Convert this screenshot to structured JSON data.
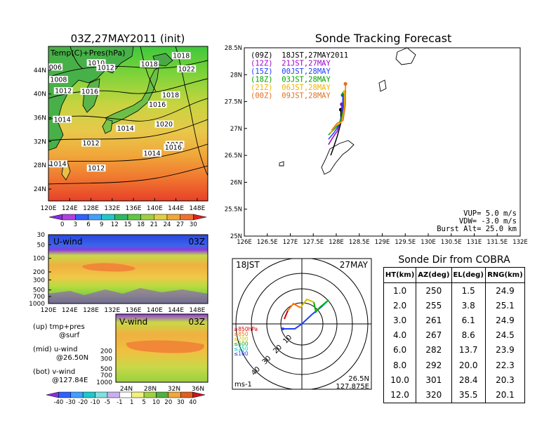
{
  "map_panel": {
    "title": "03Z,27MAY2011 (init)",
    "label": "Temp(C)+Pres(hPa)",
    "isobars": [
      {
        "text": "1010",
        "lon": 129.0,
        "lat": 45.0
      },
      {
        "text": "1012",
        "lon": 130.8,
        "lat": 44.2
      },
      {
        "text": "1018",
        "lon": 139.0,
        "lat": 44.8
      },
      {
        "text": "1018",
        "lon": 145.0,
        "lat": 46.2
      },
      {
        "text": "1022",
        "lon": 146.0,
        "lat": 44.0
      },
      {
        "text": "006",
        "lon": 121.3,
        "lat": 44.3
      },
      {
        "text": "1008",
        "lon": 121.9,
        "lat": 42.2
      },
      {
        "text": "1012",
        "lon": 122.8,
        "lat": 40.3
      },
      {
        "text": "1016",
        "lon": 127.8,
        "lat": 40.2
      },
      {
        "text": "1018",
        "lon": 143.0,
        "lat": 39.6
      },
      {
        "text": "1016",
        "lon": 140.5,
        "lat": 38.0
      },
      {
        "text": "1014",
        "lon": 122.6,
        "lat": 35.5
      },
      {
        "text": "1020",
        "lon": 141.8,
        "lat": 34.7
      },
      {
        "text": "1014",
        "lon": 134.5,
        "lat": 34.0
      },
      {
        "text": "1012",
        "lon": 128.0,
        "lat": 31.5
      },
      {
        "text": "1018",
        "lon": 143.8,
        "lat": 31.3
      },
      {
        "text": "1016",
        "lon": 143.5,
        "lat": 30.8
      },
      {
        "text": "1014",
        "lon": 139.5,
        "lat": 29.8
      },
      {
        "text": "1014",
        "lon": 121.8,
        "lat": 28.0
      },
      {
        "text": "1012",
        "lon": 129.0,
        "lat": 27.3
      }
    ],
    "lat_ticks": [
      "24N",
      "28N",
      "32N",
      "36N",
      "40N",
      "44N"
    ],
    "lon_ticks": [
      "120E",
      "124E",
      "128E",
      "132E",
      "136E",
      "140E",
      "144E",
      "148E"
    ]
  },
  "temp_colorbar": {
    "labels": [
      "0",
      "3",
      "6",
      "9",
      "12",
      "15",
      "18",
      "21",
      "24",
      "27",
      "30"
    ]
  },
  "u_panel": {
    "label": "U-wind",
    "time": "03Z",
    "p_ticks": [
      "30",
      "50",
      "100",
      "200",
      "300",
      "500",
      "700",
      "1000"
    ]
  },
  "v_panel": {
    "label": "V-wind",
    "time": "03Z",
    "lat_ticks": [
      "24N",
      "28N",
      "32N",
      "36N"
    ]
  },
  "legend_text": {
    "up": "(up) tmp+pres",
    "up2": "@surf",
    "mid": "(mid) u-wind",
    "mid2": "@26.50N",
    "bot": "(bot) v-wind",
    "bot2": "@127.84E"
  },
  "wind_colorbar": {
    "labels": [
      "-40",
      "-30",
      "-20",
      "-10",
      "-5",
      "-1",
      "1",
      "5",
      "10",
      "20",
      "30",
      "40"
    ]
  },
  "track_panel": {
    "title": "Sonde Tracking Forecast",
    "lat_ticks": [
      "25N",
      "25.5N",
      "26N",
      "26.5N",
      "27N",
      "27.5N",
      "28N",
      "28.5N"
    ],
    "lon_ticks": [
      "126E",
      "126.5E",
      "127E",
      "127.5E",
      "128E",
      "128.5E",
      "129E",
      "129.5E",
      "130E",
      "130.5E",
      "131E",
      "131.5E",
      "132E"
    ],
    "legend": [
      {
        "text": "(09Z)  18JST,27MAY2011",
        "color": "#000000"
      },
      {
        "text": "(12Z)  21JST,27MAY",
        "color": "#a000c8"
      },
      {
        "text": "(15Z)  00JST,28MAY",
        "color": "#1e3cff"
      },
      {
        "text": "(18Z)  03JST,28MAY",
        "color": "#00a000"
      },
      {
        "text": "(21Z)  06JST,28MAY",
        "color": "#f0b400"
      },
      {
        "text": "(00Z)  09JST,28MAY",
        "color": "#e07020"
      }
    ],
    "params": {
      "vup": "VUP= 5.0 m/s",
      "vdw": "VDW= -3.0 m/s",
      "burst": "Burst Alt= 25.0 km"
    }
  },
  "tracks": [
    {
      "color": "#000000",
      "points": [
        [
          127.88,
          26.5
        ],
        [
          127.93,
          26.62
        ],
        [
          128.02,
          26.85
        ],
        [
          128.1,
          27.1
        ],
        [
          128.1,
          27.35
        ]
      ]
    },
    {
      "color": "#a000c8",
      "points": [
        [
          127.83,
          26.7
        ],
        [
          127.9,
          26.8
        ],
        [
          128.02,
          26.95
        ],
        [
          128.12,
          27.2
        ],
        [
          128.12,
          27.45
        ]
      ]
    },
    {
      "color": "#1e3cff",
      "points": [
        [
          127.83,
          26.8
        ],
        [
          127.95,
          26.92
        ],
        [
          128.05,
          27.05
        ],
        [
          128.14,
          27.3
        ],
        [
          128.14,
          27.62
        ]
      ]
    },
    {
      "color": "#00a000",
      "points": [
        [
          127.83,
          26.88
        ],
        [
          127.97,
          27.0
        ],
        [
          128.08,
          27.1
        ],
        [
          128.16,
          27.35
        ],
        [
          128.16,
          27.65
        ]
      ]
    },
    {
      "color": "#f0b400",
      "points": [
        [
          127.87,
          26.92
        ],
        [
          127.99,
          27.05
        ],
        [
          128.12,
          27.12
        ],
        [
          128.18,
          27.4
        ],
        [
          128.18,
          27.68
        ]
      ]
    },
    {
      "color": "#e07020",
      "points": [
        [
          127.9,
          26.97
        ],
        [
          128.02,
          27.1
        ],
        [
          128.15,
          27.15
        ],
        [
          128.2,
          27.45
        ],
        [
          128.2,
          27.83
        ]
      ]
    }
  ],
  "polar_panel": {
    "time": "18JST",
    "date": "27MAY",
    "unit": "ms-1",
    "lat": "26.5N",
    "lon": "127.875E",
    "ring_labels": [
      "10",
      "20",
      "30",
      "40"
    ],
    "legend": [
      {
        "text": "≥850hPa",
        "color": "#d00000"
      },
      {
        "text": "≤850",
        "color": "#ff7000"
      },
      {
        "text": "≤700",
        "color": "#d0c000"
      },
      {
        "text": "≤500",
        "color": "#00b000"
      },
      {
        "text": "≤250",
        "color": "#00c8c8"
      },
      {
        "text": "≤100",
        "color": "#2040ff"
      }
    ]
  },
  "sonde_table": {
    "title": "Sonde Dir from COBRA",
    "headers": [
      "HT(km)",
      "AZ(deg)",
      "EL(deg)",
      "RNG(km)"
    ],
    "rows": [
      [
        "1.0",
        "250",
        "1.5",
        "24.9"
      ],
      [
        "2.0",
        "255",
        "3.8",
        "25.1"
      ],
      [
        "3.0",
        "261",
        "6.1",
        "24.9"
      ],
      [
        "4.0",
        "267",
        "8.6",
        "24.5"
      ],
      [
        "6.0",
        "282",
        "13.7",
        "23.9"
      ],
      [
        "8.0",
        "292",
        "20.0",
        "22.3"
      ],
      [
        "10.0",
        "301",
        "28.4",
        "20.3"
      ],
      [
        "12.0",
        "320",
        "35.5",
        "20.1"
      ]
    ]
  }
}
